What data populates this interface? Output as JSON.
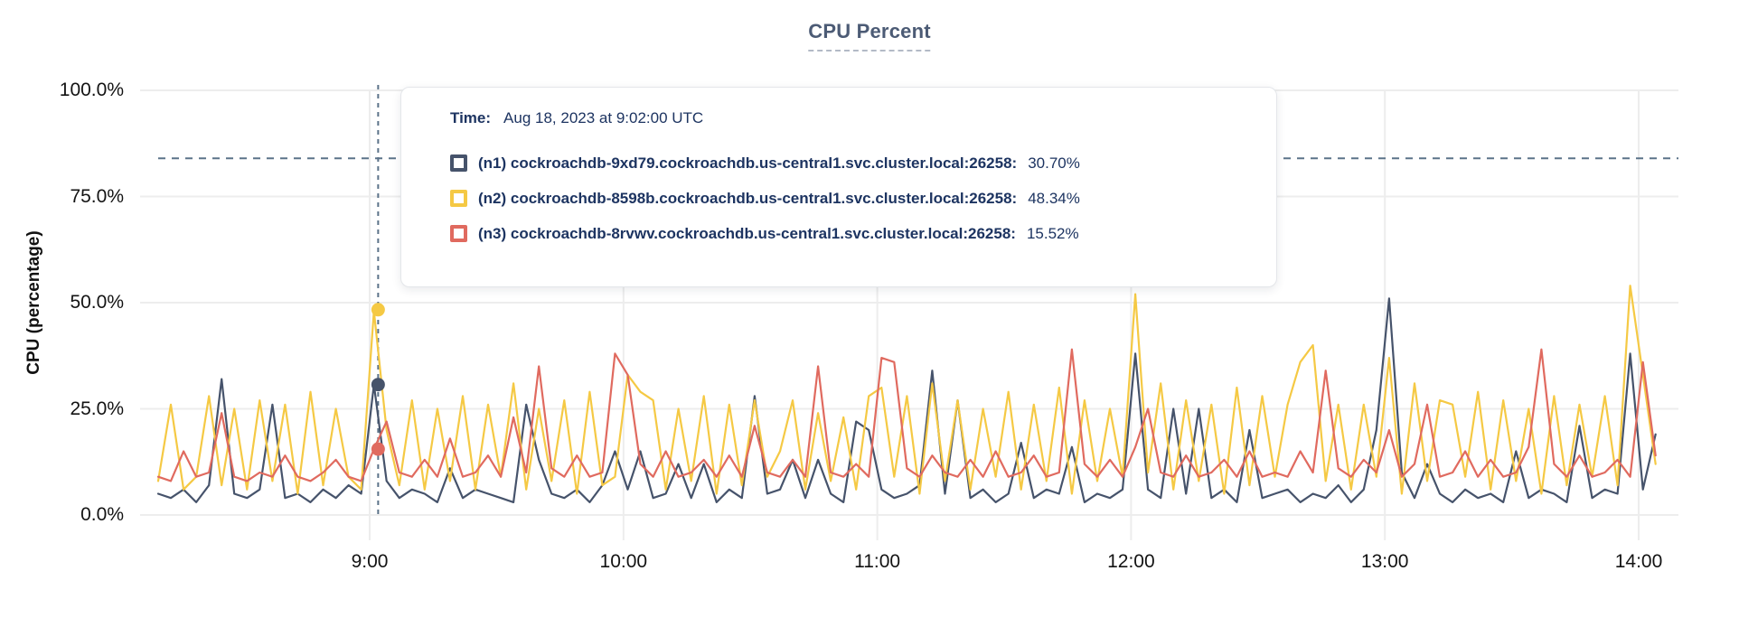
{
  "title": {
    "text": "CPU Percent",
    "color": "#4c5b75"
  },
  "y_axis": {
    "label": "CPU (percentage)"
  },
  "tooltip": {
    "time_label": "Time:",
    "time_value": "Aug 18, 2023 at 9:02:00 UTC",
    "text_color": "#1d3461",
    "rows": [
      {
        "name": "(n1) cockroachdb-9xd79.cockroachdb.us-central1.svc.cluster.local:26258:",
        "value": "30.70%",
        "color": "#46536b"
      },
      {
        "name": "(n2) cockroachdb-8598b.cockroachdb.us-central1.svc.cluster.local:26258:",
        "value": "48.34%",
        "color": "#f5c944"
      },
      {
        "name": "(n3) cockroachdb-8rvwv.cockroachdb.us-central1.svc.cluster.local:26258:",
        "value": "15.52%",
        "color": "#e06a5f"
      }
    ]
  },
  "chart_data": {
    "type": "line",
    "title": "CPU Percent",
    "ylabel": "CPU (percentage)",
    "ylim": [
      0,
      100
    ],
    "grid": true,
    "legend_position": "tooltip",
    "y_ticks": [
      {
        "value": 0,
        "label": "0.0%"
      },
      {
        "value": 25,
        "label": "25.0%"
      },
      {
        "value": 50,
        "label": "50.0%"
      },
      {
        "value": 75,
        "label": "75.0%"
      },
      {
        "value": 100,
        "label": "100.0%"
      }
    ],
    "x_domain_minutes": [
      490,
      848
    ],
    "x_ticks": [
      {
        "minute": 540,
        "label": "9:00"
      },
      {
        "minute": 600,
        "label": "10:00"
      },
      {
        "minute": 660,
        "label": "11:00"
      },
      {
        "minute": 720,
        "label": "12:00"
      },
      {
        "minute": 780,
        "label": "13:00"
      },
      {
        "minute": 840,
        "label": "14:00"
      }
    ],
    "x_start_minute": 490,
    "x_step_minutes": 3,
    "threshold": {
      "value_percent": 84,
      "color": "#5c7389",
      "style": "dashed"
    },
    "hover": {
      "minute": 542,
      "time": "9:02",
      "values": [
        30.7,
        48.34,
        15.52
      ]
    },
    "grid_color": "#ededed",
    "series": [
      {
        "short": "n1",
        "name": "cockroachdb-9xd79.cockroachdb.us-central1.svc.cluster.local:26258",
        "color": "#46536b",
        "values": [
          5,
          4,
          6,
          3,
          7,
          32,
          5,
          4,
          6,
          26,
          4,
          5,
          3,
          6,
          4,
          7,
          5,
          30.7,
          8,
          4,
          6,
          5,
          3,
          11,
          4,
          6,
          5,
          4,
          3,
          26,
          13,
          5,
          4,
          6,
          3,
          7,
          15,
          6,
          15,
          4,
          5,
          12,
          4,
          12,
          3,
          6,
          4,
          28,
          5,
          6,
          13,
          4,
          13,
          5,
          3,
          22,
          20,
          6,
          4,
          5,
          7,
          34,
          5,
          27,
          4,
          6,
          3,
          5,
          17,
          4,
          6,
          5,
          16,
          3,
          5,
          4,
          6,
          38,
          6,
          4,
          25,
          5,
          25,
          4,
          6,
          3,
          20,
          4,
          5,
          6,
          3,
          5,
          4,
          7,
          3,
          6,
          20,
          51,
          10,
          4,
          12,
          5,
          3,
          6,
          4,
          5,
          3,
          15,
          4,
          6,
          5,
          3,
          21,
          4,
          6,
          5,
          38,
          6,
          19
        ]
      },
      {
        "short": "n2",
        "name": "cockroachdb-8598b.cockroachdb.us-central1.svc.cluster.local:26258",
        "color": "#f5c944",
        "values": [
          8,
          26,
          6,
          9,
          28,
          7,
          25,
          6,
          27,
          8,
          26,
          5,
          29,
          7,
          25,
          9,
          6,
          48,
          20,
          7,
          27,
          6,
          25,
          8,
          28,
          6,
          26,
          9,
          31,
          6,
          25,
          8,
          27,
          5,
          29,
          7,
          9,
          33,
          29,
          27,
          6,
          25,
          8,
          28,
          5,
          26,
          7,
          27,
          9,
          15,
          27,
          6,
          24,
          8,
          23,
          6,
          28,
          30,
          9,
          28,
          5,
          31,
          8,
          27,
          6,
          25,
          9,
          29,
          6,
          26,
          8,
          30,
          5,
          27,
          8,
          25,
          9,
          52,
          10,
          31,
          6,
          27,
          8,
          26,
          5,
          30,
          7,
          28,
          9,
          26,
          36,
          40,
          8,
          26,
          6,
          26,
          9,
          37,
          5,
          31,
          8,
          27,
          26,
          9,
          29,
          6,
          27,
          8,
          25,
          5,
          28,
          7,
          26,
          9,
          28,
          7,
          54,
          33,
          12
        ]
      },
      {
        "short": "n3",
        "name": "cockroachdb-8rvwv.cockroachdb.us-central1.svc.cluster.local:26258",
        "color": "#e06a5f",
        "values": [
          9,
          8,
          15,
          9,
          10,
          24,
          9,
          8,
          10,
          9,
          14,
          9,
          8,
          10,
          13,
          9,
          8,
          15.5,
          22,
          10,
          9,
          13,
          9,
          18,
          9,
          10,
          14,
          9,
          23,
          10,
          35,
          11,
          9,
          14,
          9,
          10,
          38,
          33,
          12,
          9,
          15,
          9,
          10,
          13,
          9,
          14,
          9,
          21,
          10,
          9,
          13,
          9,
          35,
          10,
          9,
          12,
          9,
          37,
          36,
          11,
          9,
          14,
          10,
          9,
          13,
          9,
          15,
          9,
          10,
          14,
          9,
          10,
          39,
          12,
          9,
          13,
          9,
          16,
          25,
          10,
          9,
          14,
          9,
          10,
          13,
          9,
          15,
          9,
          10,
          9,
          15,
          10,
          34,
          11,
          9,
          13,
          10,
          20,
          9,
          12,
          26,
          9,
          10,
          15,
          9,
          13,
          9,
          10,
          16,
          39,
          12,
          9,
          14,
          9,
          10,
          13,
          9,
          36,
          14
        ]
      }
    ]
  }
}
